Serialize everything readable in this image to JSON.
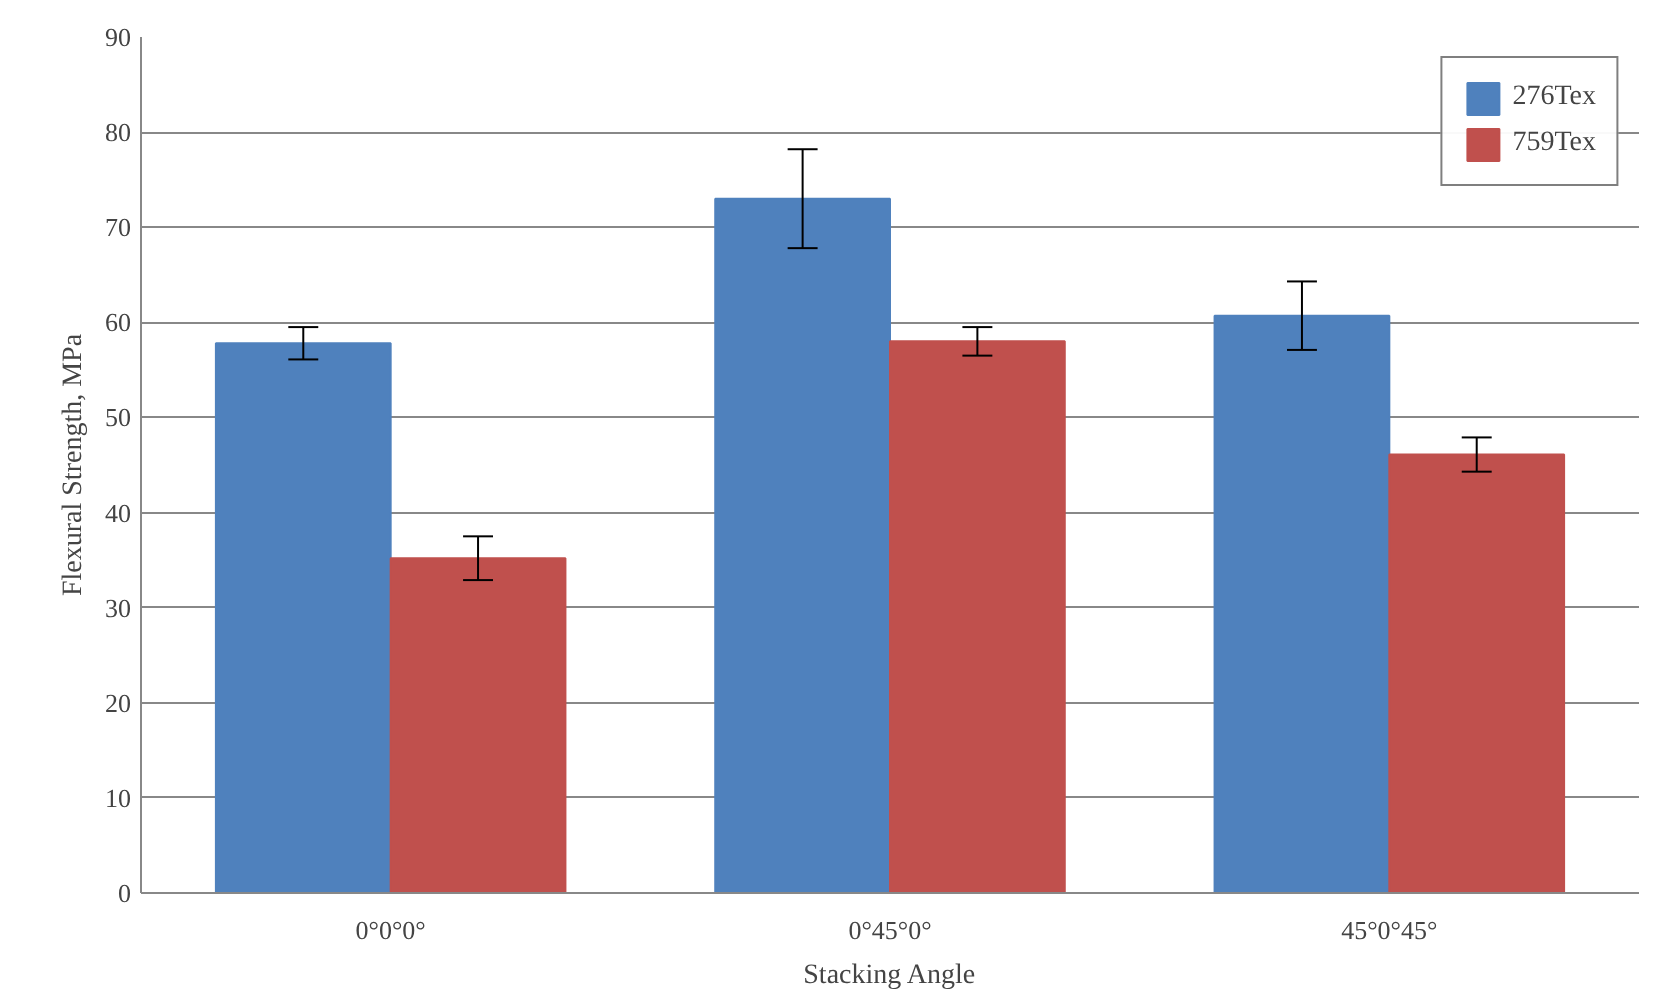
{
  "chart_data": {
    "type": "bar",
    "xlabel": "Stacking Angle",
    "ylabel": "Flexural Strength, MPa",
    "categories": [
      "0°0°0°",
      "0°45°0°",
      "45°0°45°"
    ],
    "series": [
      {
        "name": "276Tex",
        "color": "#4f81bd",
        "values": [
          57.8,
          73.0,
          60.7
        ],
        "errors": [
          1.7,
          5.2,
          3.6
        ]
      },
      {
        "name": "759Tex",
        "color": "#c0504d",
        "values": [
          35.2,
          58.0,
          46.1
        ],
        "errors": [
          2.3,
          1.5,
          1.8
        ]
      }
    ],
    "ylim": [
      0,
      90
    ],
    "yticks": [
      0,
      10,
      20,
      30,
      40,
      50,
      60,
      70,
      80,
      90
    ],
    "grid": "y",
    "legend": "top right"
  }
}
